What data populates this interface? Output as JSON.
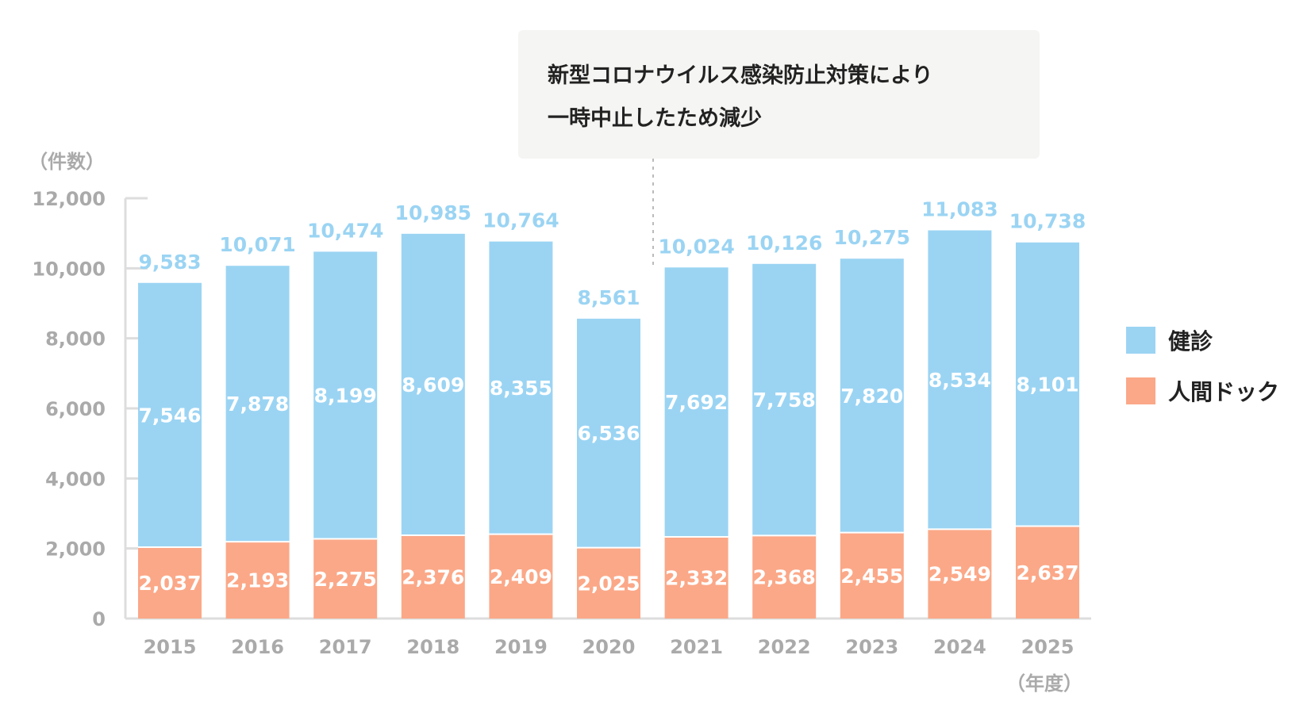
{
  "chart_data": {
    "type": "bar",
    "stacked": true,
    "categories": [
      "2015",
      "2016",
      "2017",
      "2018",
      "2019",
      "2020",
      "2021",
      "2022",
      "2023",
      "2024",
      "2025"
    ],
    "series": [
      {
        "name": "人間ドック",
        "color": "#fba888",
        "values": [
          2037,
          2193,
          2275,
          2376,
          2409,
          2025,
          2332,
          2368,
          2455,
          2549,
          2637
        ],
        "labels": [
          "2,037",
          "2,193",
          "2,275",
          "2,376",
          "2,409",
          "2,025",
          "2,332",
          "2,368",
          "2,455",
          "2,549",
          "2,637"
        ]
      },
      {
        "name": "健診",
        "color": "#9bd4f3",
        "values": [
          7546,
          7878,
          8199,
          8609,
          8355,
          6536,
          7692,
          7758,
          7820,
          8534,
          8101
        ],
        "labels": [
          "7,546",
          "7,878",
          "8,199",
          "8,609",
          "8,355",
          "6,536",
          "7,692",
          "7,758",
          "7,820",
          "8,534",
          "8,101"
        ]
      }
    ],
    "totals": [
      9583,
      10071,
      10474,
      10985,
      10764,
      8561,
      10024,
      10126,
      10275,
      11083,
      10738
    ],
    "total_labels": [
      "9,583",
      "10,071",
      "10,474",
      "10,985",
      "10,764",
      "8,561",
      "10,024",
      "10,126",
      "10,275",
      "11,083",
      "10,738"
    ],
    "ylim": [
      0,
      12000
    ],
    "yticks": [
      0,
      2000,
      4000,
      6000,
      8000,
      10000,
      12000
    ],
    "ytick_labels": [
      "0",
      "2,000",
      "4,000",
      "6,000",
      "8,000",
      "10,000",
      "12,000"
    ],
    "ylabel": "（件数）",
    "xlabel": "（年度）",
    "legend_position": "right",
    "grid": false,
    "annotation": {
      "lines": [
        "新型コロナウイルス感染防止対策により",
        "一時中止したため減少"
      ],
      "attached_to": "2020"
    }
  },
  "colors": {
    "axis": "#dddddd",
    "tick_text": "#aaaaaa",
    "total_label": "#9bd4f3",
    "note_bg": "#f5f5f3",
    "note_leader": "#bbbbbb"
  }
}
